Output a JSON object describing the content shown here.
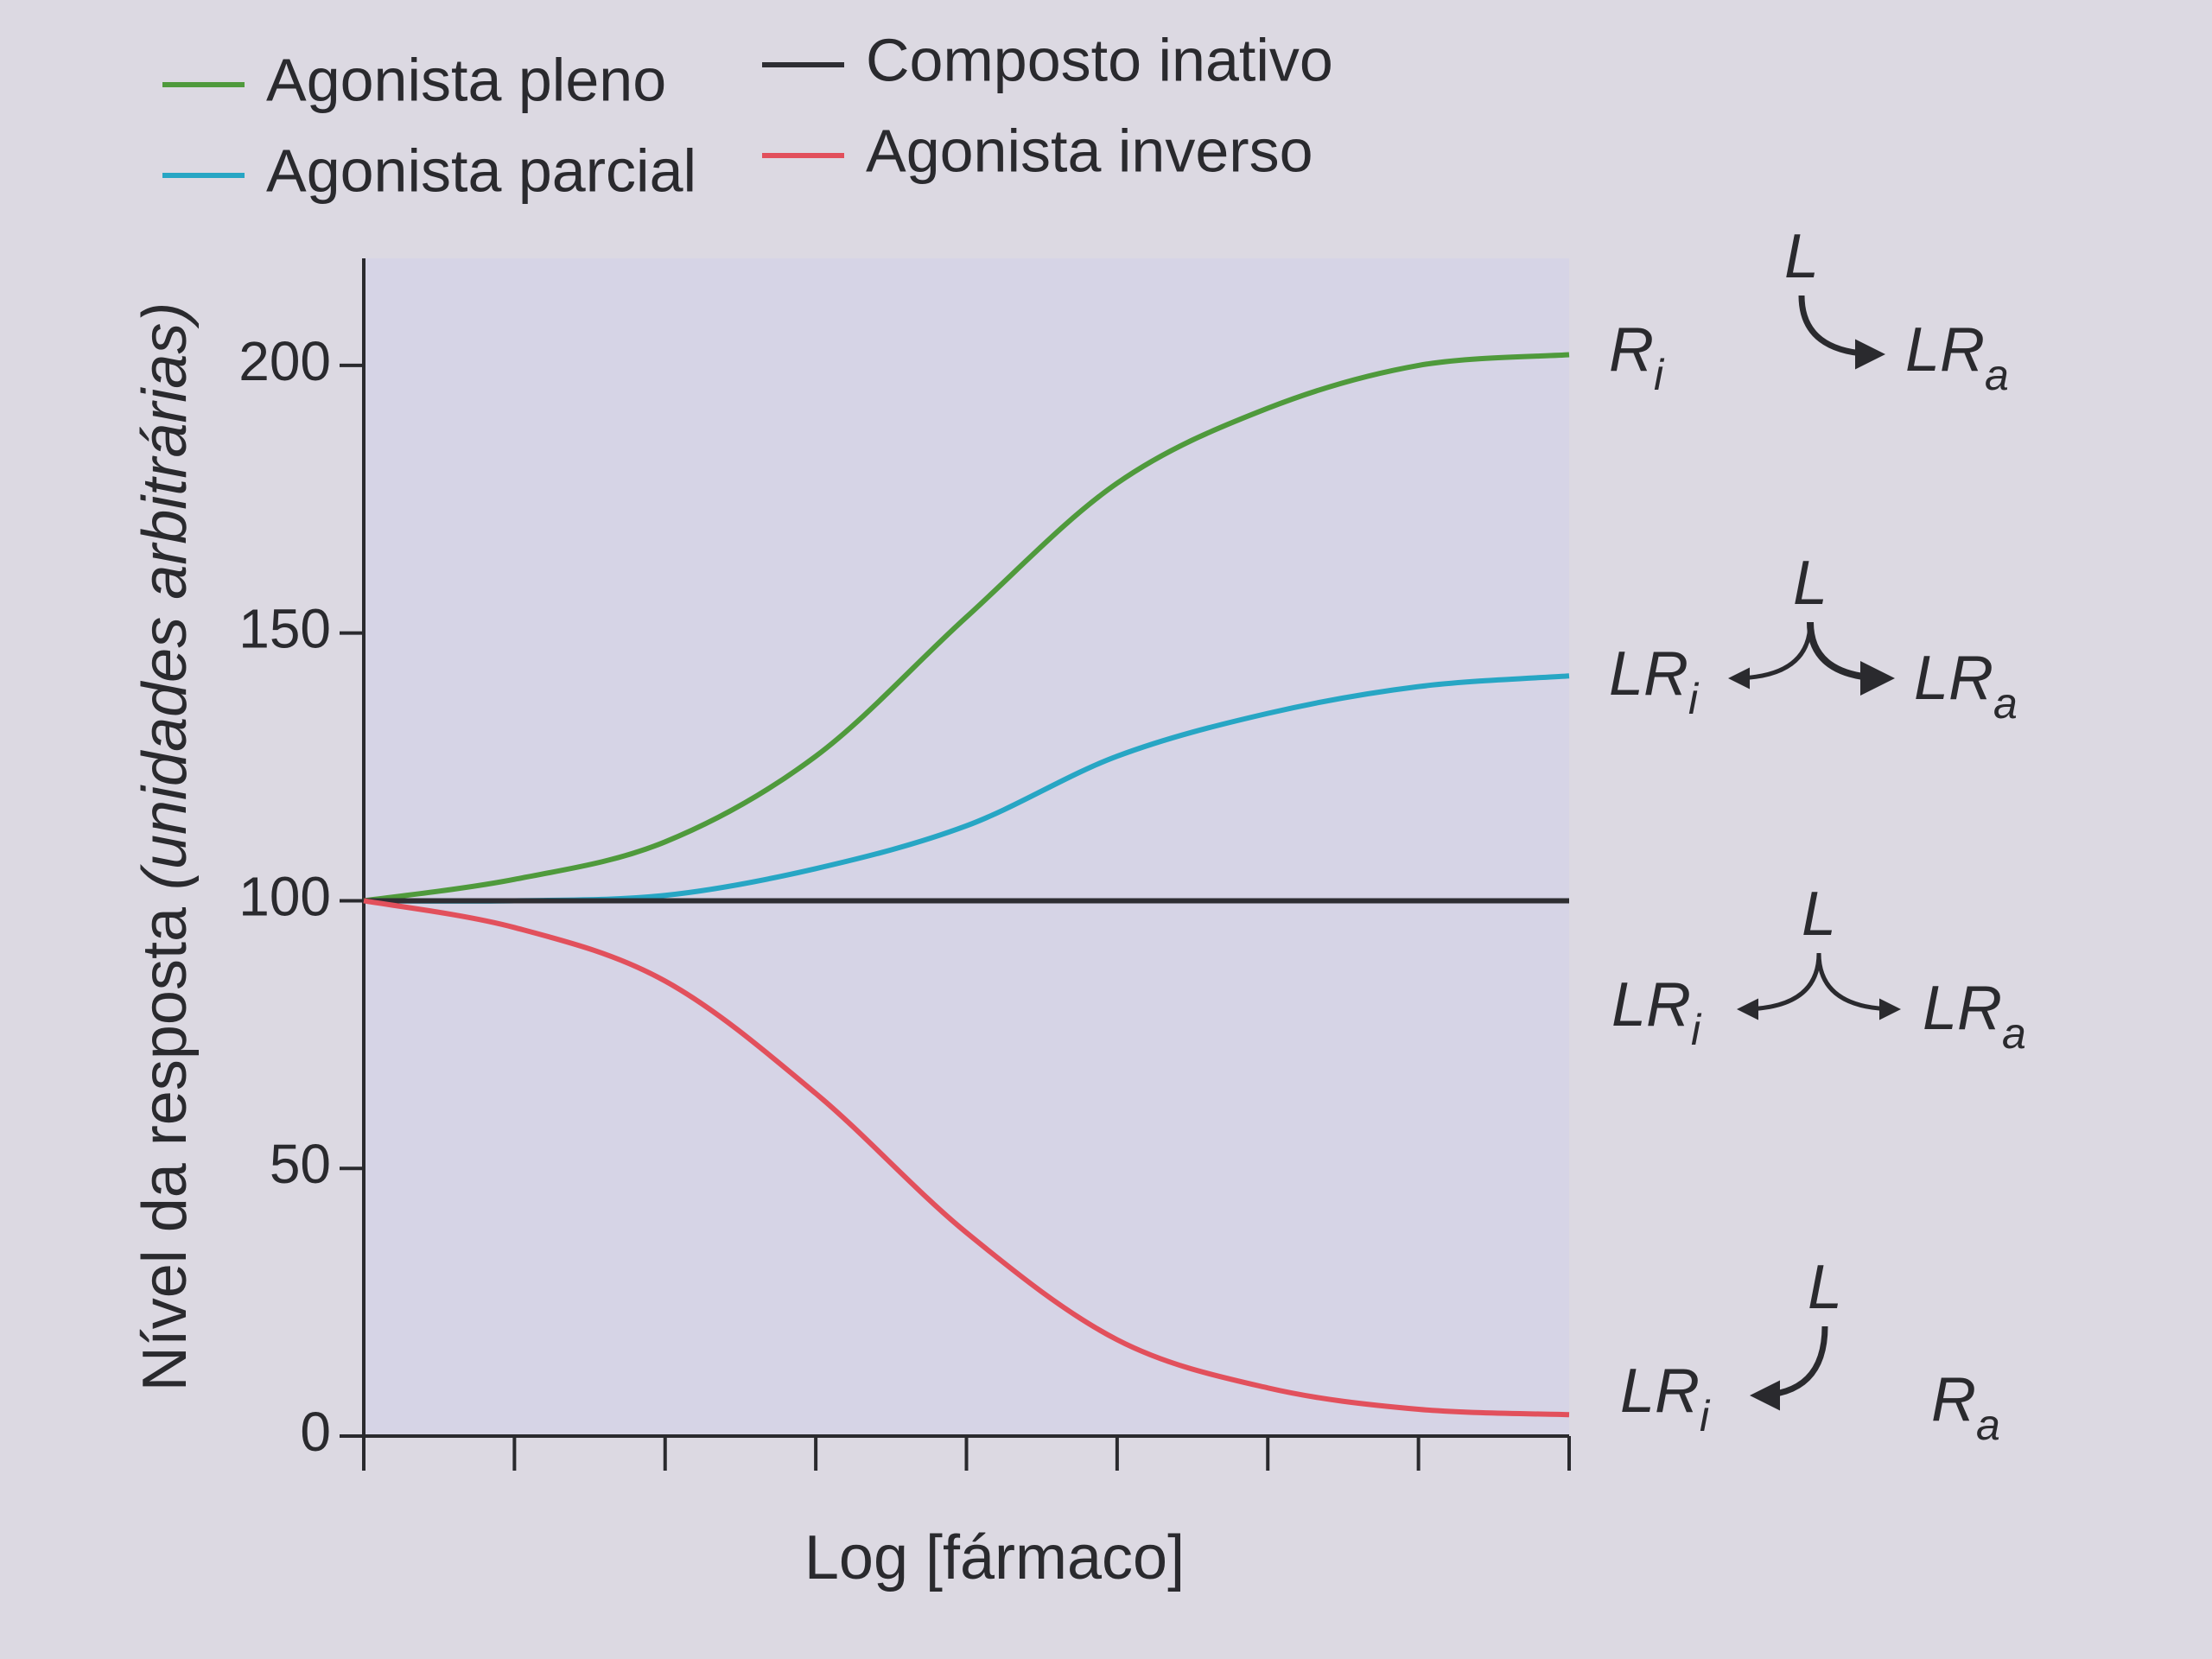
{
  "chart_data": {
    "type": "line",
    "x_label": "Log [fármaco]",
    "y_label": "Nível da resposta",
    "y_label_unit": "(unidades arbitrárias)",
    "categories": [
      null,
      null,
      null,
      null,
      null,
      null,
      null,
      null,
      null
    ],
    "series": [
      {
        "name": "Agonista pleno",
        "color": "#4f9a3c",
        "values": [
          100,
          104,
          111,
          127,
          153,
          178,
          192,
          200,
          202
        ]
      },
      {
        "name": "Agonista parcial",
        "color": "#27a6c4",
        "values": [
          100,
          100,
          101,
          106,
          114,
          127,
          135,
          140,
          142
        ]
      },
      {
        "name": "Composto inativo",
        "color": "#2e2e33",
        "values": [
          100,
          100,
          100,
          100,
          100,
          100,
          100,
          100,
          100
        ]
      },
      {
        "name": "Agonista inverso",
        "color": "#e2505c",
        "values": [
          100,
          95,
          85,
          64,
          38,
          18,
          9,
          5,
          4
        ]
      }
    ],
    "ylim": [
      0,
      220
    ],
    "yticks": [
      0,
      50,
      100,
      150,
      200
    ],
    "annotations": [
      {
        "ligand": "L",
        "left": "R",
        "left_sub": "i",
        "right": "LR",
        "right_sub": "a"
      },
      {
        "ligand": "L",
        "left": "LR",
        "left_sub": "i",
        "right": "LR",
        "right_sub": "a"
      },
      {
        "ligand": "L",
        "left": "LR",
        "left_sub": "i",
        "right": "LR",
        "right_sub": "a"
      },
      {
        "ligand": "L",
        "left": "LR",
        "left_sub": "i",
        "right": "R",
        "right_sub": "a"
      }
    ]
  }
}
